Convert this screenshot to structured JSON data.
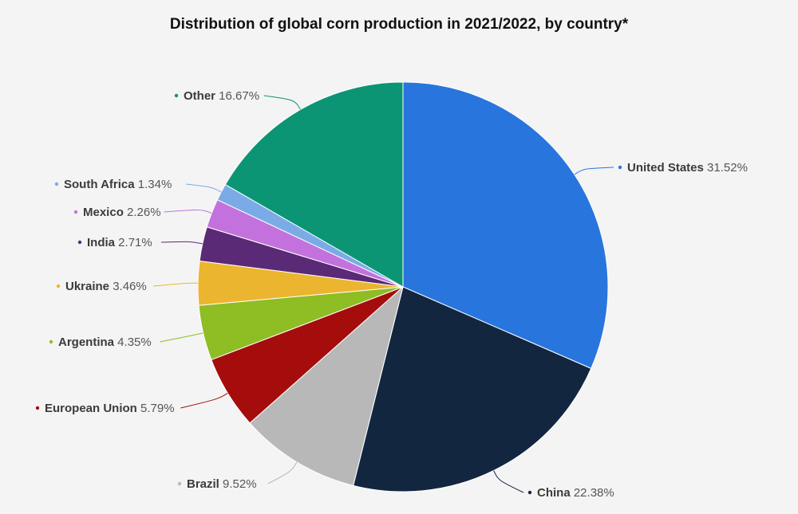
{
  "chart_data": {
    "type": "pie",
    "title": "Distribution of global corn production in 2021/2022, by country*",
    "value_unit": "%",
    "start_angle_deg": 0,
    "direction": "clockwise",
    "slices": [
      {
        "label": "United States",
        "value": 31.52,
        "value_text": "31.52%",
        "color": "#2876dd",
        "label_side": "right"
      },
      {
        "label": "China",
        "value": 22.38,
        "value_text": "22.38%",
        "color": "#12263f",
        "label_side": "right"
      },
      {
        "label": "Brazil",
        "value": 9.52,
        "value_text": "9.52%",
        "color": "#b8b8b8",
        "label_side": "left"
      },
      {
        "label": "European Union",
        "value": 5.79,
        "value_text": "5.79%",
        "color": "#a50d0d",
        "label_side": "left"
      },
      {
        "label": "Argentina",
        "value": 4.35,
        "value_text": "4.35%",
        "color": "#8ebd24",
        "label_side": "left"
      },
      {
        "label": "Ukraine",
        "value": 3.46,
        "value_text": "3.46%",
        "color": "#ecb52f",
        "label_side": "left"
      },
      {
        "label": "India",
        "value": 2.71,
        "value_text": "2.71%",
        "color": "#5b2a76",
        "label_side": "left"
      },
      {
        "label": "Mexico",
        "value": 2.26,
        "value_text": "2.26%",
        "color": "#c372dd",
        "label_side": "left"
      },
      {
        "label": "South Africa",
        "value": 1.34,
        "value_text": "1.34%",
        "color": "#7aabe6",
        "label_side": "left"
      },
      {
        "label": "Other",
        "value": 16.67,
        "value_text": "16.67%",
        "color": "#0c9575",
        "label_side": "left"
      }
    ]
  }
}
